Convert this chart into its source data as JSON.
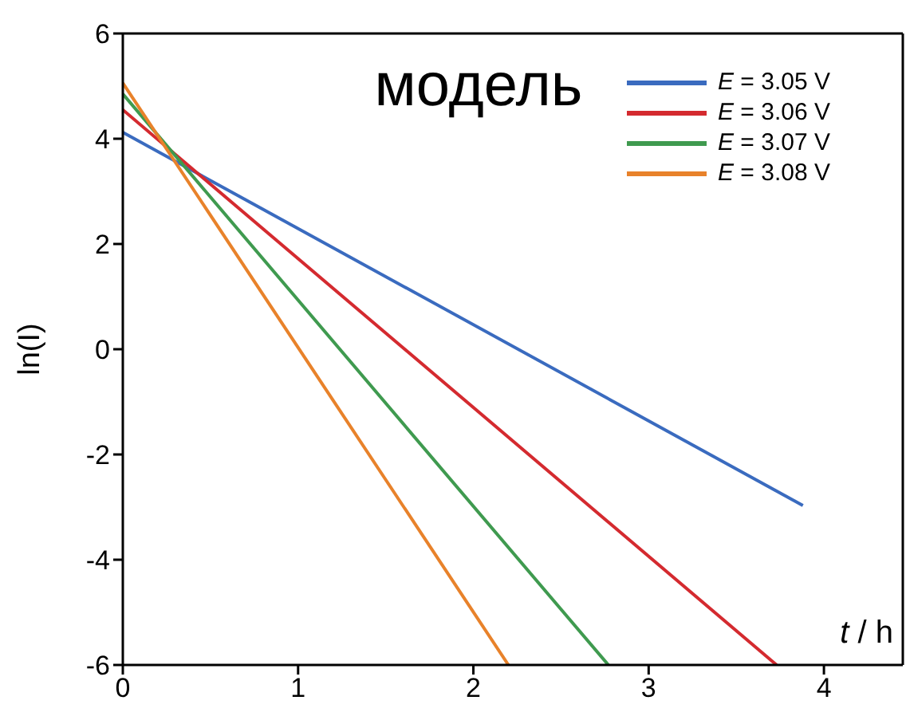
{
  "chart_data": {
    "type": "line",
    "title": "модель",
    "xlabel": "t / h",
    "ylabel": "ln(I)",
    "xlim": [
      0,
      4.45
    ],
    "xticks": [
      0,
      1,
      2,
      3,
      4
    ],
    "ylim": [
      -6,
      6
    ],
    "yticks": [
      -6,
      -4,
      -2,
      0,
      2,
      4,
      6
    ],
    "legend": "top right",
    "marker": "none",
    "line_style": "solid",
    "series": [
      {
        "name": "E = 3.05 V",
        "color": "#3a6bbf",
        "x": [
          0,
          3.88
        ],
        "values": [
          4.12,
          -2.97
        ]
      },
      {
        "name": "E = 3.06 V",
        "color": "#d42a2f",
        "x": [
          0,
          3.73
        ],
        "values": [
          4.55,
          -6
        ]
      },
      {
        "name": "E = 3.07 V",
        "color": "#3f9a4f",
        "x": [
          0,
          2.77
        ],
        "values": [
          4.85,
          -6
        ]
      },
      {
        "name": "E = 3.08 V",
        "color": "#e8822a",
        "x": [
          0,
          2.2
        ],
        "values": [
          5.06,
          -6
        ]
      }
    ]
  }
}
